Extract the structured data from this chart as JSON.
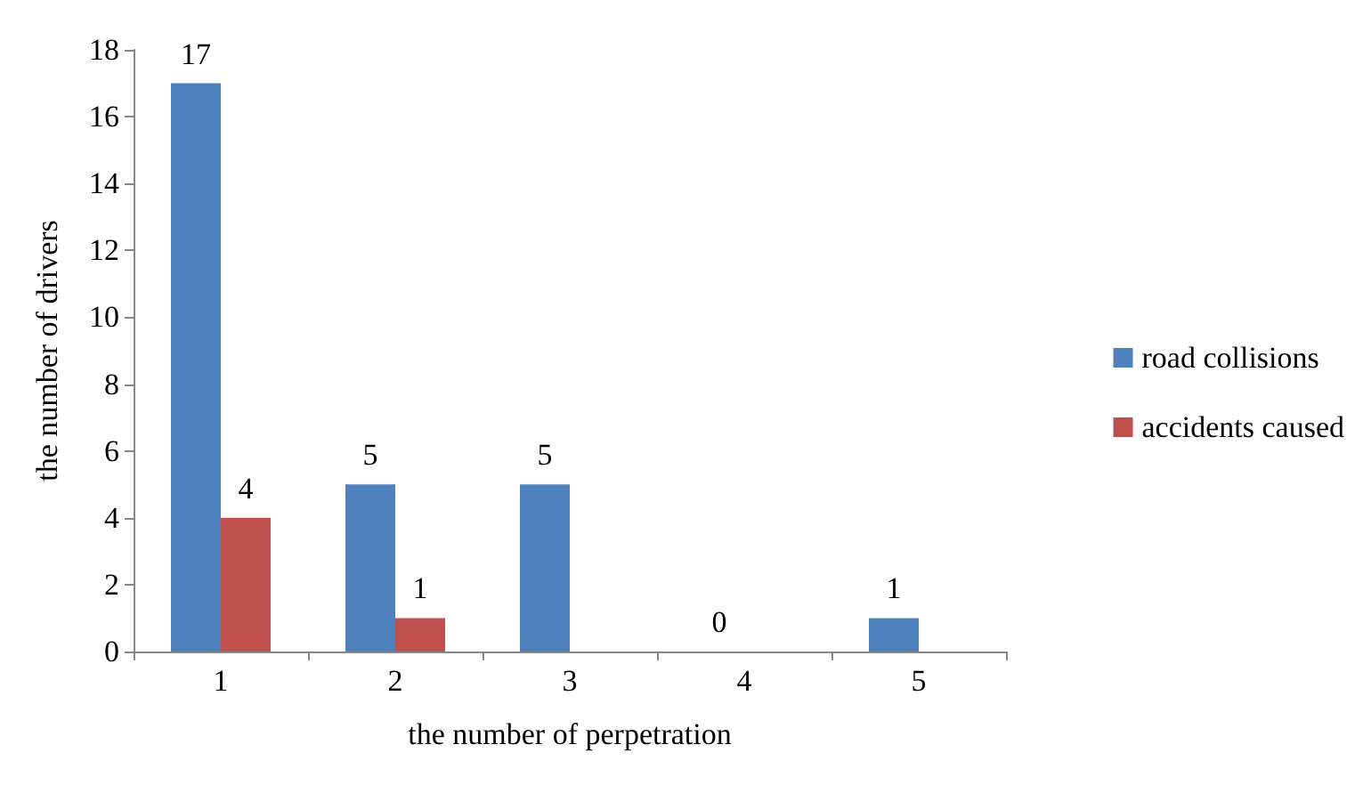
{
  "chart_data": {
    "type": "bar",
    "xlabel": "the number of perpetration",
    "ylabel": "the number of drivers",
    "categories": [
      "1",
      "2",
      "3",
      "4",
      "5"
    ],
    "series": [
      {
        "name": "road collisions",
        "color": "#4f81bd",
        "values": [
          17,
          5,
          5,
          0,
          1
        ],
        "value_labels": [
          "17",
          "5",
          "5",
          "0",
          "1"
        ]
      },
      {
        "name": "accidents caused",
        "color": "#c0504d",
        "values": [
          4,
          1,
          0,
          0,
          0
        ],
        "value_labels": [
          "4",
          "1",
          null,
          null,
          null
        ]
      }
    ],
    "ylim": [
      0,
      18
    ],
    "yticks": [
      0,
      2,
      4,
      6,
      8,
      10,
      12,
      14,
      16,
      18
    ],
    "grid": false,
    "legend": "right"
  }
}
